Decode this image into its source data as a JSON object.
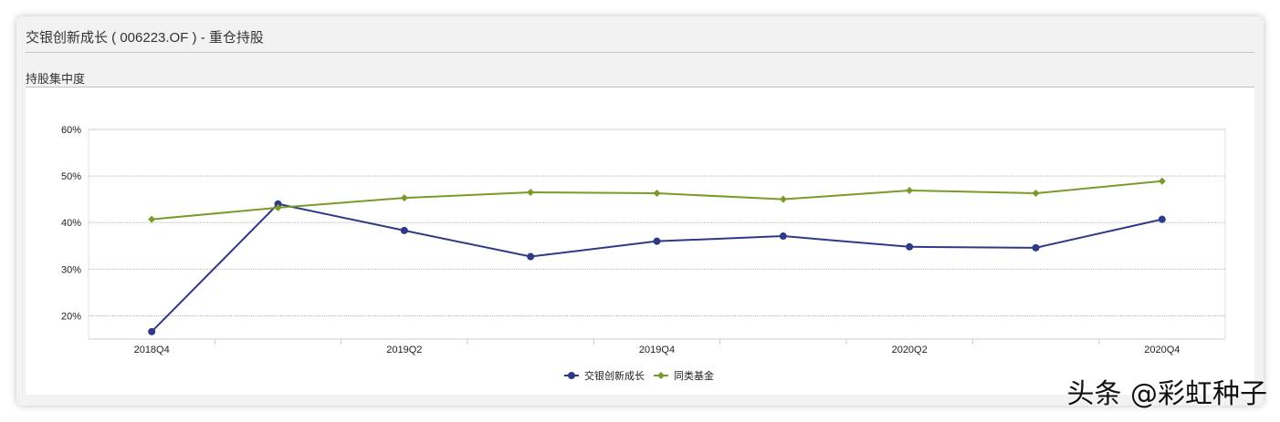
{
  "header": {
    "title": "交银创新成长 ( 006223.OF ) - 重仓持股"
  },
  "section": {
    "title": "持股集中度"
  },
  "watermark": "头条 @彩虹种子",
  "chart_data": {
    "type": "line",
    "categories": [
      "2018Q4",
      "2019Q1",
      "2019Q2",
      "2019Q3",
      "2019Q4",
      "2020Q1",
      "2020Q2",
      "2020Q3",
      "2020Q4"
    ],
    "tick_labels": [
      "2018Q4",
      "",
      "2019Q2",
      "",
      "2019Q4",
      "",
      "2020Q2",
      "",
      "2020Q4"
    ],
    "y_ticks": [
      "20%",
      "30%",
      "40%",
      "50%",
      "60%"
    ],
    "y_tick_values": [
      20,
      30,
      40,
      50,
      60
    ],
    "ylim": [
      15,
      60
    ],
    "grid": true,
    "legend_position": "bottom",
    "series": [
      {
        "name": "交银创新成长",
        "color": "#2e3a87",
        "marker": "circle",
        "values": [
          16.6,
          44.0,
          38.3,
          32.7,
          36.0,
          37.1,
          34.8,
          34.6,
          40.7
        ]
      },
      {
        "name": "同类基金",
        "color": "#7a9a2a",
        "marker": "diamond",
        "values": [
          40.7,
          43.2,
          45.3,
          46.5,
          46.3,
          45.0,
          46.9,
          46.3,
          48.9
        ]
      }
    ]
  }
}
